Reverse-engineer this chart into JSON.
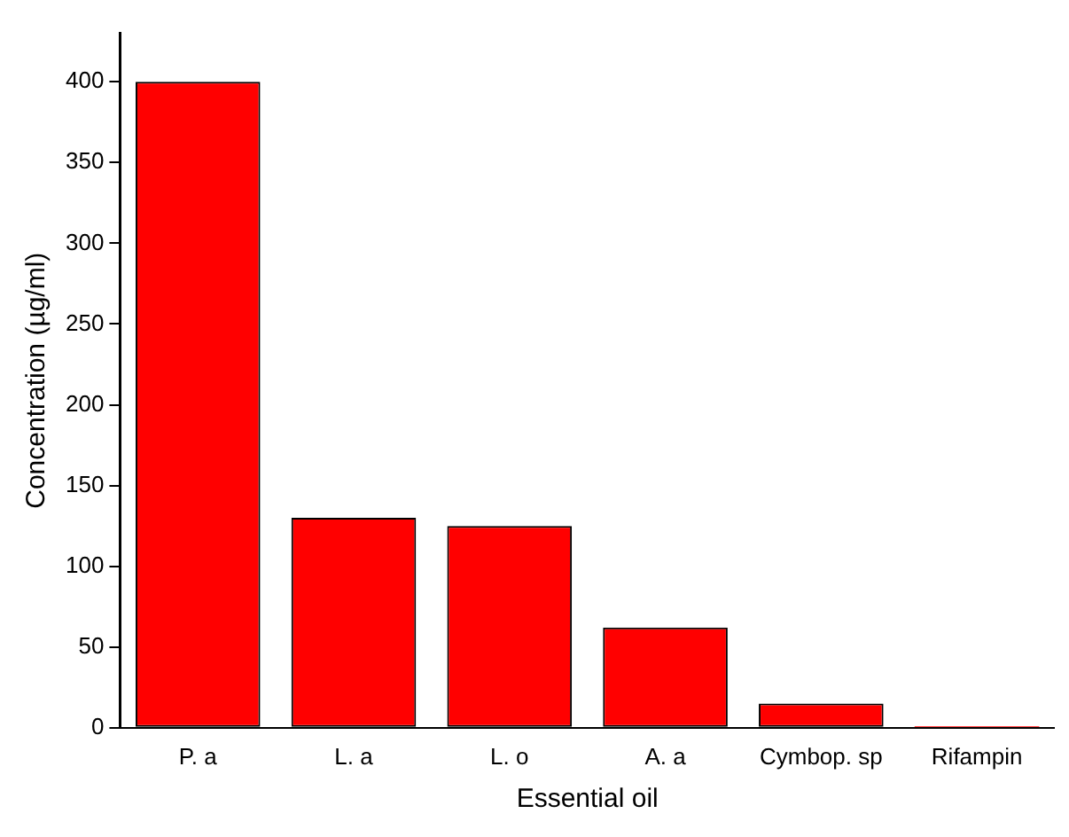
{
  "chart_data": {
    "type": "bar",
    "xlabel": "Essential oil",
    "ylabel": "Concentration (µg/ml)",
    "categories": [
      "P. a",
      "L. a",
      "L. o",
      "A. a",
      "Cymbop. sp",
      "Rifampin"
    ],
    "values": [
      400,
      130,
      125,
      62,
      15,
      1
    ],
    "color": "#ff0000",
    "ylim": [
      0,
      430
    ],
    "yticks": [
      0,
      50,
      100,
      150,
      200,
      250,
      300,
      350,
      400
    ],
    "grid": false,
    "legend": false
  }
}
